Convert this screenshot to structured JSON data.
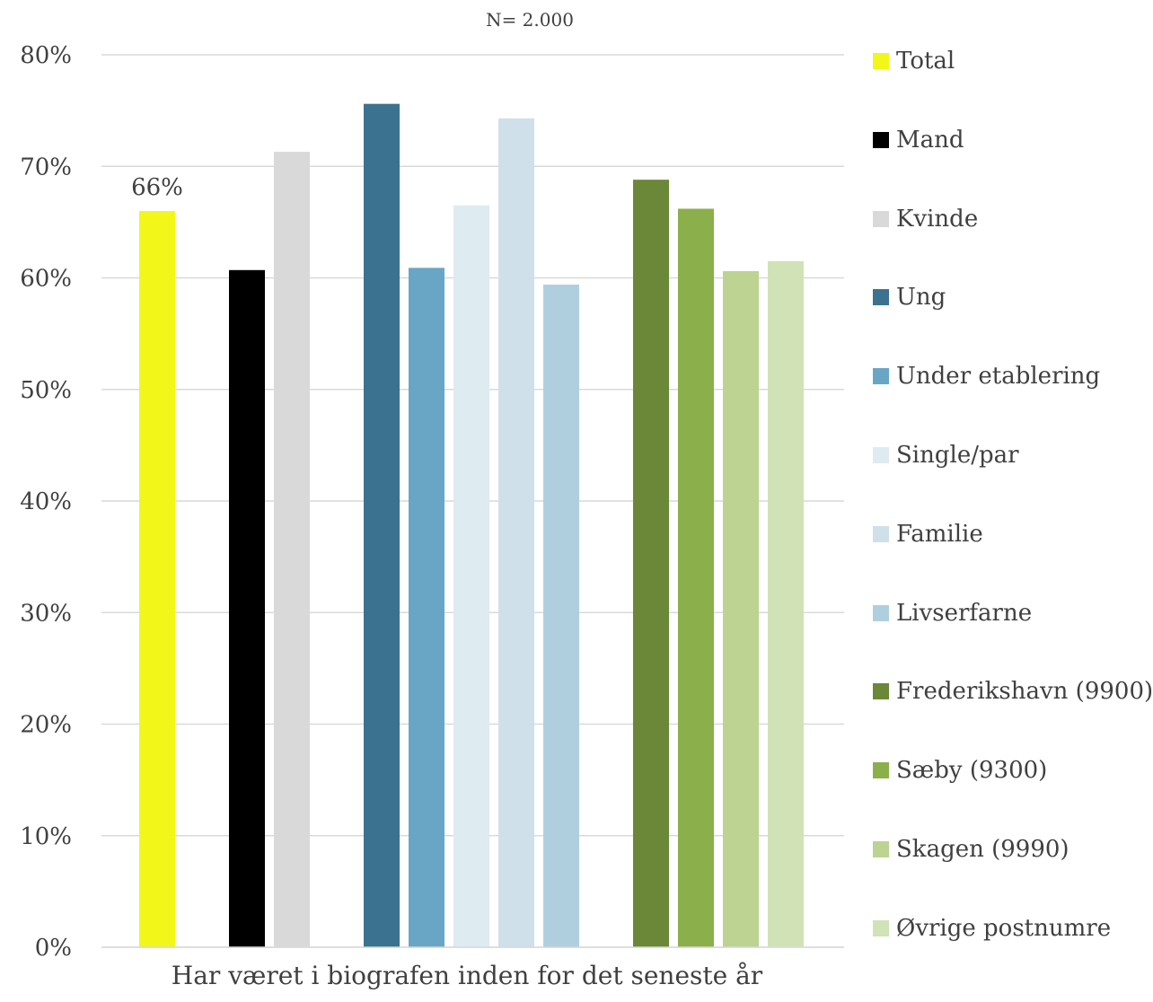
{
  "chart_data": {
    "type": "bar",
    "subtitle": "N= 2.000",
    "xlabel": "Har været i biografen inden for det seneste år",
    "ylabel": "",
    "ylim": [
      0,
      80
    ],
    "yticks": [
      "0%",
      "10%",
      "20%",
      "30%",
      "40%",
      "50%",
      "60%",
      "70%",
      "80%"
    ],
    "grid": true,
    "legend_position": "right",
    "series": [
      {
        "name": "Total",
        "value": 66,
        "color": "#F2F719",
        "data_label": "66%"
      },
      {
        "name": "Mand",
        "value": 60.7,
        "color": "#000000"
      },
      {
        "name": "Kvinde",
        "value": 71.3,
        "color": "#D9D9D9"
      },
      {
        "name": "Ung",
        "value": 75.6,
        "color": "#3B7290"
      },
      {
        "name": "Under etablering",
        "value": 60.9,
        "color": "#69A6C6"
      },
      {
        "name": "Single/par",
        "value": 66.5,
        "color": "#DEEBF1"
      },
      {
        "name": "Familie",
        "value": 74.3,
        "color": "#CFE0EA"
      },
      {
        "name": "Livserfarne",
        "value": 59.4,
        "color": "#AFCFDF"
      },
      {
        "name": "Frederikshavn (9900)",
        "value": 68.8,
        "color": "#6A8838"
      },
      {
        "name": "Sæby (9300)",
        "value": 66.2,
        "color": "#8BB04B"
      },
      {
        "name": "Skagen (9990)",
        "value": 60.6,
        "color": "#BCD392"
      },
      {
        "name": "Øvrige postnumre",
        "value": 61.5,
        "color": "#D2E2B7"
      }
    ],
    "groups": [
      [
        0
      ],
      [
        1,
        2
      ],
      [
        3,
        4,
        5,
        6,
        7
      ],
      [
        8,
        9,
        10,
        11
      ]
    ]
  }
}
